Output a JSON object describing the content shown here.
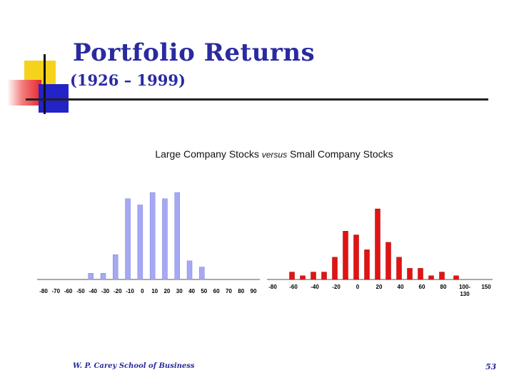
{
  "slide": {
    "title": "Portfolio Returns",
    "subtitle": "(1926 – 1999)",
    "chart_title_part1": "Large Company Stocks ",
    "chart_title_versus": "versus",
    "chart_title_part2": " Small Company Stocks",
    "footer": "W. P. Carey School of Business",
    "page_number": "53"
  },
  "colors": {
    "large_bar": "#a5a8f2",
    "small_bar": "#e01414",
    "accent_title": "#2a2aa0"
  },
  "chart_data": [
    {
      "type": "bar",
      "name": "Large Company Stocks",
      "tick_labels": [
        "-80",
        "-70",
        "-60",
        "-50",
        "-40",
        "-30",
        "-20",
        "-10",
        "0",
        "10",
        "20",
        "30",
        "40",
        "50",
        "60",
        "70",
        "80",
        "90"
      ],
      "bins": [
        -40,
        -30,
        -20,
        -10,
        0,
        10,
        20,
        30,
        40,
        50
      ],
      "values": [
        1,
        1,
        4,
        13,
        12,
        14,
        13,
        14,
        3,
        2
      ]
    },
    {
      "type": "bar",
      "name": "Small Company Stocks",
      "tick_labels": [
        "-80",
        "-60",
        "-40",
        "-20",
        "0",
        "20",
        "40",
        "60",
        "80",
        "100-\n130",
        "150"
      ],
      "bins": [
        -70,
        -60,
        -50,
        -40,
        -30,
        -20,
        -10,
        0,
        10,
        20,
        30,
        40,
        50,
        60,
        70,
        80,
        90,
        100,
        110,
        120,
        130,
        140
      ],
      "values": [
        0,
        1,
        0.5,
        1,
        1,
        3,
        6.5,
        6,
        4,
        9.5,
        5,
        3,
        1.5,
        1.5,
        0.5,
        1,
        0,
        0.5,
        0,
        0,
        0,
        0
      ]
    }
  ]
}
